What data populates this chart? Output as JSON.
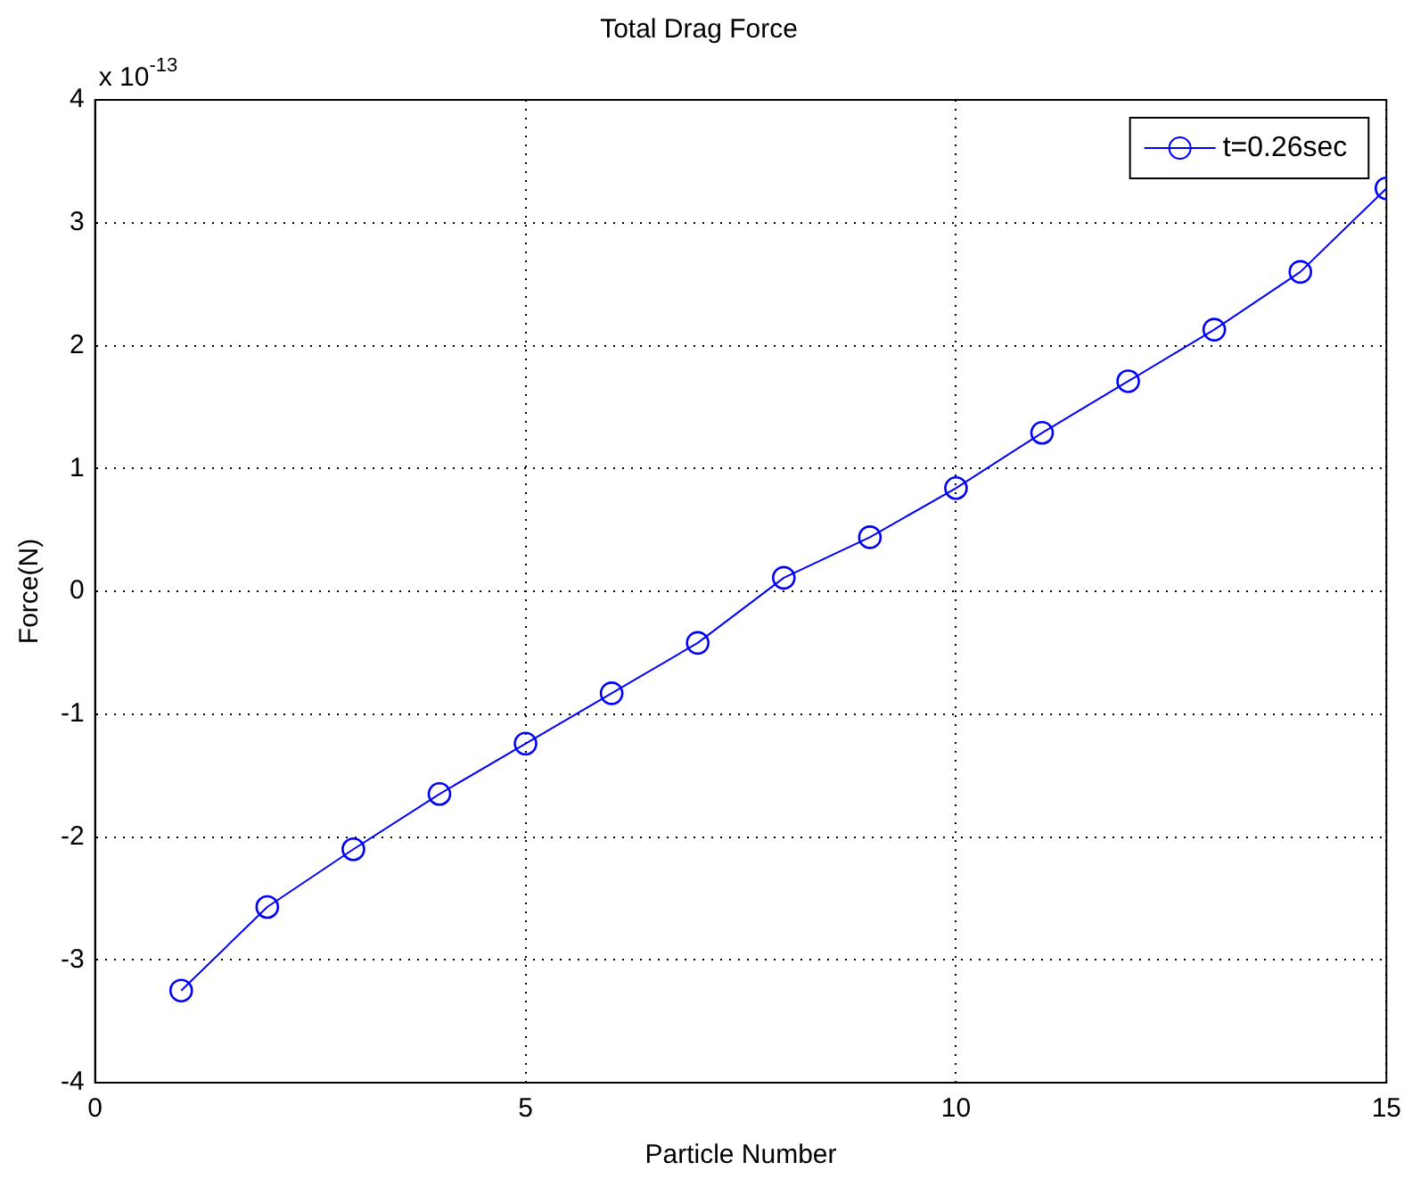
{
  "chart_data": {
    "type": "line",
    "title": "Total Drag Force",
    "xlabel": "Particle Number",
    "ylabel": "Force(N)",
    "annotations": [
      "x 10$^{-13}$"
    ],
    "x": [
      1,
      2,
      3,
      4,
      5,
      6,
      7,
      8,
      9,
      10,
      11,
      12,
      13,
      14,
      15
    ],
    "series": [
      {
        "name": "t=0.26sec",
        "color": "#0000ff",
        "values": [
          -3.25,
          -2.57,
          -2.1,
          -1.65,
          -1.24,
          -0.83,
          -0.42,
          0.11,
          0.44,
          0.84,
          1.29,
          1.71,
          2.13,
          2.6,
          3.28
        ]
      }
    ],
    "xlim": [
      0,
      15
    ],
    "xticks": [
      0,
      5,
      10,
      15
    ],
    "ylim": [
      -4,
      4
    ],
    "yticks": [
      -4,
      -3,
      -2,
      -1,
      0,
      1,
      2,
      3,
      4
    ],
    "grid": true,
    "legend": "top right",
    "marker": "circle",
    "line_style": "solid"
  }
}
